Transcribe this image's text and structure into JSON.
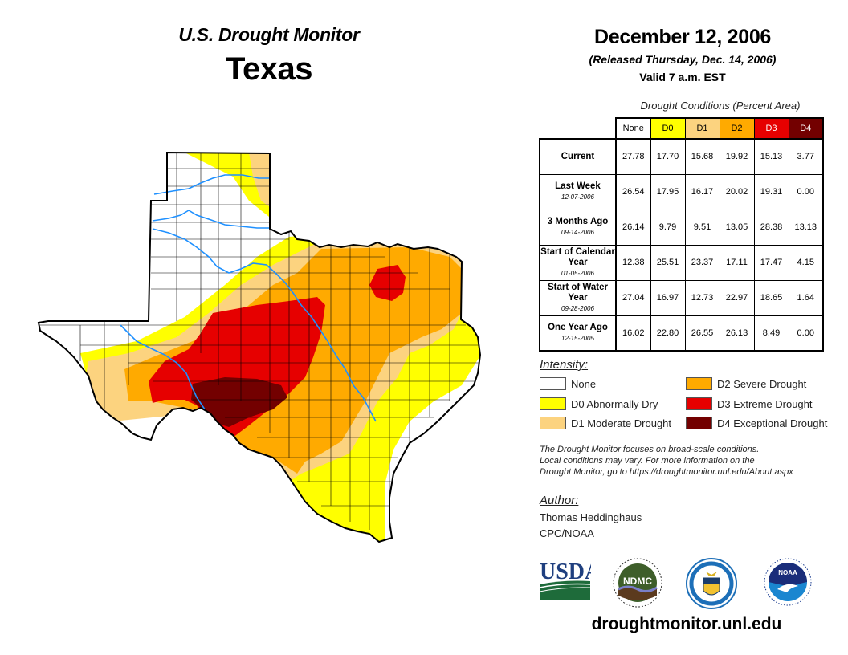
{
  "header": {
    "title": "U.S. Drought Monitor",
    "state": "Texas",
    "date": "December 12, 2006",
    "released": "(Released Thursday, Dec. 14, 2006)",
    "valid": "Valid 7 a.m. EST"
  },
  "table": {
    "caption": "Drought Conditions (Percent Area)",
    "columns": [
      {
        "label": "None",
        "color": "#ffffff",
        "text_color": "#000000"
      },
      {
        "label": "D0",
        "color": "#ffff00",
        "text_color": "#000000"
      },
      {
        "label": "D1",
        "color": "#fcd37f",
        "text_color": "#000000"
      },
      {
        "label": "D2",
        "color": "#ffaa00",
        "text_color": "#000000"
      },
      {
        "label": "D3",
        "color": "#e60000",
        "text_color": "#ffffff"
      },
      {
        "label": "D4",
        "color": "#730000",
        "text_color": "#ffffff"
      }
    ],
    "rows": [
      {
        "label": "Current",
        "sub": "",
        "values": [
          "27.78",
          "17.70",
          "15.68",
          "19.92",
          "15.13",
          "3.77"
        ]
      },
      {
        "label": "Last Week",
        "sub": "12-07-2006",
        "values": [
          "26.54",
          "17.95",
          "16.17",
          "20.02",
          "19.31",
          "0.00"
        ]
      },
      {
        "label": "3 Months Ago",
        "sub": "09-14-2006",
        "values": [
          "26.14",
          "9.79",
          "9.51",
          "13.05",
          "28.38",
          "13.13"
        ]
      },
      {
        "label": "Start of Calendar Year",
        "sub": "01-05-2006",
        "values": [
          "12.38",
          "25.51",
          "23.37",
          "17.11",
          "17.47",
          "4.15"
        ]
      },
      {
        "label": "Start of Water Year",
        "sub": "09-28-2006",
        "values": [
          "27.04",
          "16.97",
          "12.73",
          "22.97",
          "18.65",
          "1.64"
        ]
      },
      {
        "label": "One Year Ago",
        "sub": "12-15-2005",
        "values": [
          "16.02",
          "22.80",
          "26.55",
          "26.13",
          "8.49",
          "0.00"
        ]
      }
    ]
  },
  "legend": {
    "title": "Intensity:",
    "items": [
      {
        "label": "None",
        "color": "#ffffff"
      },
      {
        "label": "D0 Abnormally Dry",
        "color": "#ffff00"
      },
      {
        "label": "D1 Moderate Drought",
        "color": "#fcd37f"
      },
      {
        "label": "D2 Severe Drought",
        "color": "#ffaa00"
      },
      {
        "label": "D3 Extreme Drought",
        "color": "#e60000"
      },
      {
        "label": "D4 Exceptional Drought",
        "color": "#730000"
      }
    ]
  },
  "note": {
    "line1": "The Drought Monitor focuses on broad-scale conditions.",
    "line2": "Local conditions may vary. For more information on the",
    "line3": "Drought Monitor, go to https://droughtmonitor.unl.edu/About.aspx"
  },
  "author": {
    "title": "Author:",
    "name": "Thomas Heddinghaus",
    "org": "CPC/NOAA"
  },
  "logos": [
    {
      "name": "usda-logo",
      "text": "USDA"
    },
    {
      "name": "ndmc-logo",
      "text": "NDMC"
    },
    {
      "name": "commerce-logo",
      "text": ""
    },
    {
      "name": "noaa-logo",
      "text": "NOAA"
    }
  ],
  "footer": {
    "site": "droughtmonitor.unl.edu"
  },
  "map": {
    "region": "Texas",
    "river_color": "#1e90ff",
    "category_colors": {
      "none": "#ffffff",
      "D0": "#ffff00",
      "D1": "#fcd37f",
      "D2": "#ffaa00",
      "D3": "#e60000",
      "D4": "#730000"
    }
  }
}
